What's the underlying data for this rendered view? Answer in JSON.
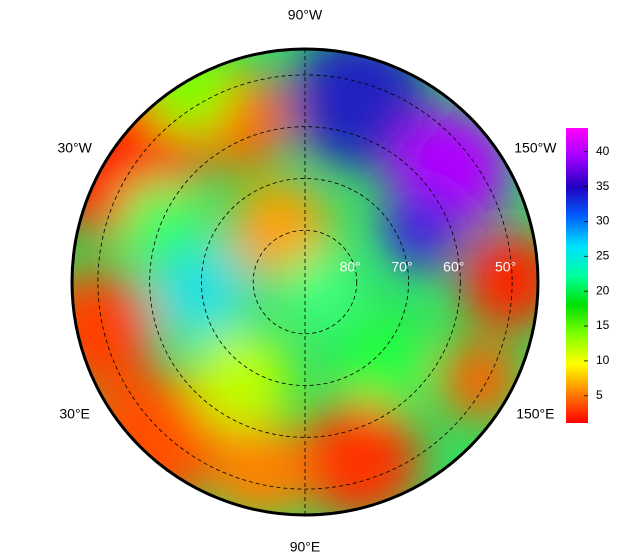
{
  "map": {
    "lat_lim": [
      45,
      90
    ],
    "latitude_labels": [
      {
        "value": 80,
        "label": "80°"
      },
      {
        "value": 70,
        "label": "70°"
      },
      {
        "value": 60,
        "label": "60°"
      },
      {
        "value": 50,
        "label": "50°"
      }
    ],
    "longitude_labels": [
      {
        "value": -90,
        "label": "90°W"
      },
      {
        "value": -30,
        "label": "30°W"
      },
      {
        "value": -150,
        "label": "150°W"
      },
      {
        "value": 30,
        "label": "30°E"
      },
      {
        "value": 150,
        "label": "150°E"
      },
      {
        "value": 90,
        "label": "90°E"
      }
    ]
  },
  "colorbar": {
    "lim": [
      1.1,
      43.4
    ],
    "ticks": [
      5,
      10,
      15,
      20,
      25,
      30,
      35,
      40
    ],
    "colors": [
      "#ff0000",
      "#ff8000",
      "#ffff00",
      "#80ff00",
      "#00e000",
      "#00ffa0",
      "#00e0ff",
      "#0060ff",
      "#2000c0",
      "#a000ff",
      "#ff00ff"
    ]
  }
}
